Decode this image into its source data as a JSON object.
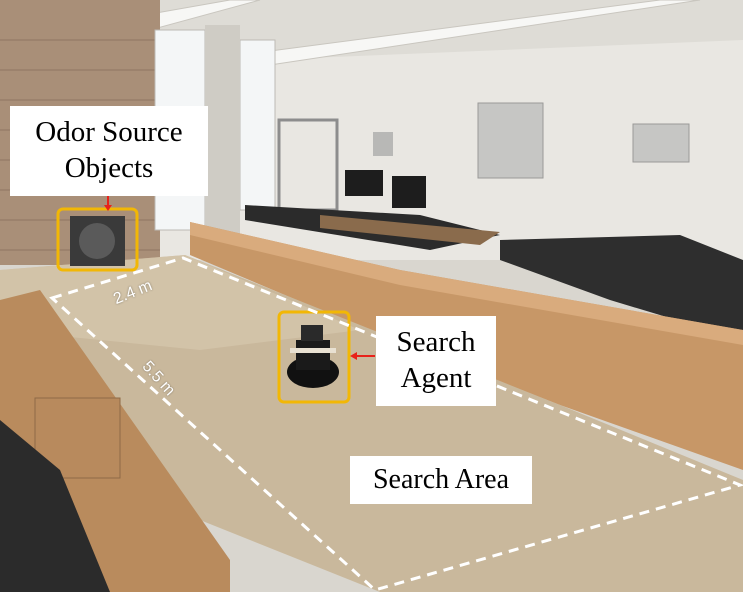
{
  "labels": {
    "odor_source_line1": "Odor Source",
    "odor_source_line2": "Objects",
    "agent_line1": "Search",
    "agent_line2": "Agent",
    "area": "Search Area"
  },
  "dimensions": {
    "width": "2.4 m",
    "length": "5.5 m"
  },
  "colors": {
    "highlight_box": "#f2b705",
    "arrow": "#e8221a",
    "boundary": "#ffffff"
  }
}
